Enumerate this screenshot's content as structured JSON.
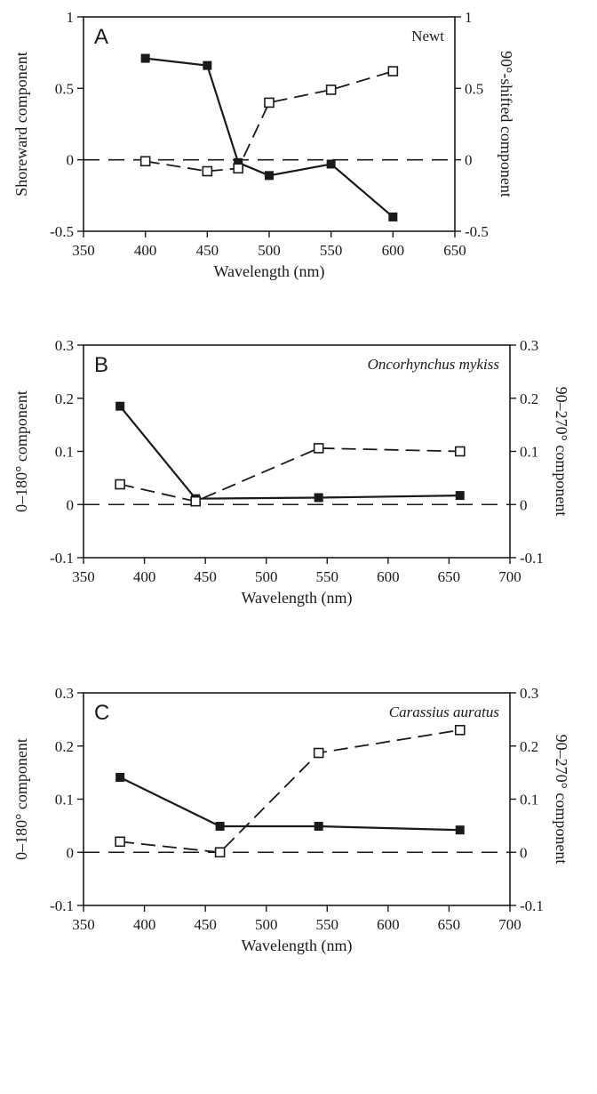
{
  "chart_data": [
    {
      "type": "line",
      "panel_label": "A",
      "annotation": "Newt",
      "annotation_italic": false,
      "xlabel": "Wavelength (nm)",
      "ylabel": "Shoreward component",
      "y2label": "90°-shifted component",
      "xlim": [
        350,
        650
      ],
      "ylim": [
        -0.5,
        1
      ],
      "y2lim": [
        -0.5,
        1
      ],
      "x_ticks": [
        350,
        400,
        450,
        500,
        550,
        600,
        650
      ],
      "y_ticks": [
        -0.5,
        0,
        0.5,
        1
      ],
      "y_tick_labels": [
        "-0.5",
        "0",
        "0.5",
        "1"
      ],
      "y2_ticks": [
        -0.5,
        0,
        0.5,
        1
      ],
      "y2_tick_labels": [
        "-0.5",
        "0",
        "0.5",
        "1"
      ],
      "zero_line": true,
      "series": [
        {
          "marker": "filled-square",
          "line": "solid",
          "x": [
            400,
            450,
            475,
            500,
            550,
            600
          ],
          "y": [
            0.71,
            0.66,
            -0.02,
            -0.11,
            -0.03,
            -0.4
          ]
        },
        {
          "marker": "open-square",
          "line": "dashed",
          "x": [
            400,
            450,
            475,
            500,
            550,
            600
          ],
          "y": [
            -0.01,
            -0.08,
            -0.06,
            0.4,
            0.49,
            0.62
          ]
        }
      ]
    },
    {
      "type": "line",
      "panel_label": "B",
      "annotation": "Oncorhynchus mykiss",
      "annotation_italic": true,
      "xlabel": "Wavelength (nm)",
      "ylabel": "0–180° component",
      "y2label": "90–270° component",
      "xlim": [
        350,
        700
      ],
      "ylim": [
        -0.1,
        0.3
      ],
      "y2lim": [
        -0.1,
        0.3
      ],
      "x_ticks": [
        350,
        400,
        450,
        500,
        550,
        600,
        650,
        700
      ],
      "y_ticks": [
        -0.1,
        0,
        0.1,
        0.2,
        0.3
      ],
      "y_tick_labels": [
        "-0.1",
        "0",
        "0.1",
        "0.2",
        "0.3"
      ],
      "y2_ticks": [
        -0.1,
        0,
        0.1,
        0.2,
        0.3
      ],
      "y2_tick_labels": [
        "-0.1",
        "0",
        "0.1",
        "0.2",
        "0.3"
      ],
      "zero_line": true,
      "series": [
        {
          "marker": "filled-square",
          "line": "solid",
          "x": [
            380,
            442,
            543,
            659
          ],
          "y": [
            0.185,
            0.011,
            0.013,
            0.017
          ]
        },
        {
          "marker": "open-square",
          "line": "dashed",
          "x": [
            380,
            442,
            543,
            659
          ],
          "y": [
            0.038,
            0.006,
            0.106,
            0.1
          ]
        }
      ]
    },
    {
      "type": "line",
      "panel_label": "C",
      "annotation": "Carassius auratus",
      "annotation_italic": true,
      "xlabel": "Wavelength (nm)",
      "ylabel": "0–180° component",
      "y2label": "90–270° component",
      "xlim": [
        350,
        700
      ],
      "ylim": [
        -0.1,
        0.3
      ],
      "y2lim": [
        -0.1,
        0.3
      ],
      "x_ticks": [
        350,
        400,
        450,
        500,
        550,
        600,
        650,
        700
      ],
      "y_ticks": [
        -0.1,
        0,
        0.1,
        0.2,
        0.3
      ],
      "y_tick_labels": [
        "-0.1",
        "0",
        "0.1",
        "0.2",
        "0.3"
      ],
      "y2_ticks": [
        -0.1,
        0,
        0.1,
        0.2,
        0.3
      ],
      "y2_tick_labels": [
        "-0.1",
        "0",
        "0.1",
        "0.2",
        "0.3"
      ],
      "zero_line": true,
      "series": [
        {
          "marker": "filled-square",
          "line": "solid",
          "x": [
            380,
            462,
            543,
            659
          ],
          "y": [
            0.141,
            0.049,
            0.049,
            0.042
          ]
        },
        {
          "marker": "open-square",
          "line": "dashed",
          "x": [
            380,
            462,
            543,
            659
          ],
          "y": [
            0.02,
            0.0,
            0.187,
            0.23
          ]
        }
      ]
    }
  ]
}
